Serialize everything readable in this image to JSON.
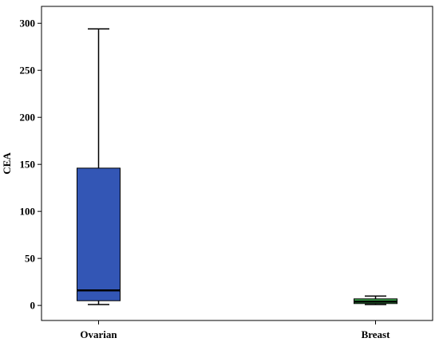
{
  "chart_data": {
    "type": "box",
    "title": "",
    "xlabel": "",
    "ylabel": "CEA",
    "ylim": [
      -16,
      318
    ],
    "yticks": [
      0,
      50,
      100,
      150,
      200,
      250,
      300
    ],
    "grid": false,
    "categories": [
      "Ovarian",
      "Breast"
    ],
    "boxes": [
      {
        "category": "Ovarian",
        "whisker_low": 1,
        "q1": 5,
        "median": 16,
        "q3": 146,
        "whisker_high": 294,
        "color": "#3356b5"
      },
      {
        "category": "Breast",
        "whisker_low": 1,
        "q1": 2,
        "median": 4,
        "q3": 7,
        "whisker_high": 10,
        "color": "#3aa34a"
      }
    ]
  }
}
